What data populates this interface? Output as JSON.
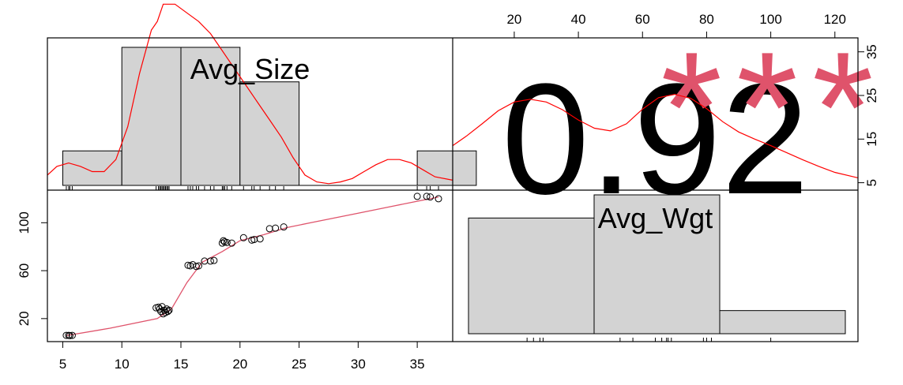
{
  "chart_data": {
    "type": "scatter",
    "variables": [
      "Avg_Size",
      "Avg_Wgt"
    ],
    "correlation": {
      "value": "0.92",
      "stars": "***"
    },
    "axes": {
      "bottom_ticks": [
        5,
        10,
        15,
        20,
        25,
        30,
        35
      ],
      "top_ticks": [
        20,
        40,
        60,
        80,
        100,
        120
      ],
      "left_ticks": [
        20,
        60,
        100
      ],
      "right_ticks": [
        5,
        15,
        25,
        35
      ],
      "size_range": [
        3.7,
        38.0
      ],
      "wgt_range": [
        0.8,
        127.2
      ],
      "wgt_count_range": [
        3.3,
        38.2
      ]
    },
    "avg_size_hist": {
      "bins": [
        [
          5,
          10,
          2
        ],
        [
          10,
          15,
          8
        ],
        [
          15,
          20,
          8
        ],
        [
          20,
          25,
          6
        ],
        [
          25,
          30,
          0
        ],
        [
          30,
          35,
          0
        ],
        [
          35,
          40,
          2
        ]
      ],
      "count_max": 8
    },
    "avg_wgt_hist": {
      "bins": [
        [
          0,
          50,
          15
        ],
        [
          50,
          100,
          18
        ],
        [
          100,
          150,
          3
        ]
      ],
      "count_max": 18
    },
    "points": [
      [
        5.3,
        6
      ],
      [
        5.5,
        6
      ],
      [
        5.6,
        5.8
      ],
      [
        5.8,
        6
      ],
      [
        12.9,
        29
      ],
      [
        13.1,
        29.5
      ],
      [
        13.2,
        28
      ],
      [
        13.3,
        26
      ],
      [
        13.4,
        30
      ],
      [
        13.5,
        24
      ],
      [
        13.6,
        27
      ],
      [
        13.7,
        25
      ],
      [
        13.8,
        28
      ],
      [
        13.9,
        26
      ],
      [
        14.0,
        27
      ],
      [
        15.6,
        64.5
      ],
      [
        15.8,
        64
      ],
      [
        16.0,
        65
      ],
      [
        16.3,
        63.5
      ],
      [
        16.5,
        64
      ],
      [
        17.0,
        68
      ],
      [
        17.5,
        68
      ],
      [
        17.8,
        68.5
      ],
      [
        18.5,
        83
      ],
      [
        18.6,
        85
      ],
      [
        18.7,
        84
      ],
      [
        18.9,
        83.5
      ],
      [
        19.3,
        83
      ],
      [
        20.3,
        87.5
      ],
      [
        21.0,
        85.5
      ],
      [
        21.2,
        86
      ],
      [
        21.7,
        86.5
      ],
      [
        22.5,
        95
      ],
      [
        23.0,
        95.5
      ],
      [
        23.7,
        96.5
      ],
      [
        35.0,
        122
      ],
      [
        35.8,
        122
      ],
      [
        36.1,
        121.5
      ],
      [
        36.8,
        120
      ]
    ],
    "smooth_line": [
      [
        5.3,
        5.8
      ],
      [
        9,
        12
      ],
      [
        13,
        20
      ],
      [
        14.2,
        28
      ],
      [
        15.5,
        50
      ],
      [
        16.8,
        67
      ],
      [
        18.5,
        76
      ],
      [
        20,
        85
      ],
      [
        22,
        90
      ],
      [
        24,
        96
      ],
      [
        26,
        100
      ],
      [
        30,
        108
      ],
      [
        33,
        114
      ],
      [
        36.8,
        121.5
      ]
    ],
    "size_rug": [
      5.3,
      5.5,
      5.6,
      5.8,
      12.9,
      13.1,
      13.2,
      13.3,
      13.4,
      13.5,
      13.6,
      13.7,
      13.8,
      13.9,
      14.0,
      15.6,
      15.8,
      16.0,
      16.3,
      16.5,
      17.0,
      17.5,
      17.8,
      18.5,
      18.6,
      18.7,
      18.9,
      19.3,
      20.3,
      21.0,
      21.2,
      21.7,
      22.5,
      23.0,
      23.7,
      35.0,
      35.8,
      36.1,
      36.8
    ],
    "wgt_rug": [
      24,
      26,
      28,
      29,
      53,
      57,
      64,
      66,
      67.5,
      68,
      69,
      79,
      80,
      81.5,
      100
    ],
    "size_density": [
      [
        3.7,
        0.6
      ],
      [
        4.5,
        1.1
      ],
      [
        5.5,
        1.3
      ],
      [
        6.5,
        1.1
      ],
      [
        7.5,
        0.8
      ],
      [
        8.5,
        0.8
      ],
      [
        9.5,
        1.5
      ],
      [
        10.5,
        3.4
      ],
      [
        11.5,
        6.5
      ],
      [
        12.5,
        9
      ],
      [
        13,
        9.5
      ],
      [
        13.5,
        10.5
      ],
      [
        14.5,
        10.5
      ],
      [
        15.5,
        10
      ],
      [
        16.5,
        9.5
      ],
      [
        17.5,
        8.8
      ],
      [
        18.5,
        7.8
      ],
      [
        19.5,
        6.8
      ],
      [
        20.5,
        5.8
      ],
      [
        21.5,
        4.8
      ],
      [
        22.5,
        3.8
      ],
      [
        23.5,
        2.8
      ],
      [
        24.5,
        1.6
      ],
      [
        25.5,
        0.6
      ],
      [
        26.5,
        0.2
      ],
      [
        27.5,
        0.1
      ],
      [
        28.5,
        0.2
      ],
      [
        29.5,
        0.4
      ],
      [
        30.5,
        0.8
      ],
      [
        31.5,
        1.2
      ],
      [
        32.5,
        1.5
      ],
      [
        33.5,
        1.5
      ],
      [
        34.5,
        1.3
      ],
      [
        35.5,
        0.9
      ],
      [
        36.5,
        0.5
      ],
      [
        38,
        0.3
      ]
    ],
    "wgt_density": [
      [
        0.8,
        6.8
      ],
      [
        5,
        8.5
      ],
      [
        10,
        10.8
      ],
      [
        15,
        13.2
      ],
      [
        20,
        14.8
      ],
      [
        25,
        15.3
      ],
      [
        30,
        14.8
      ],
      [
        35,
        13.4
      ],
      [
        40,
        11.5
      ],
      [
        45,
        10
      ],
      [
        50,
        9.5
      ],
      [
        55,
        10.8
      ],
      [
        60,
        13.5
      ],
      [
        65,
        15.6
      ],
      [
        70,
        16.2
      ],
      [
        75,
        15.5
      ],
      [
        80,
        13.6
      ],
      [
        85,
        11.2
      ],
      [
        90,
        9.3
      ],
      [
        95,
        8
      ],
      [
        100,
        6.8
      ],
      [
        105,
        5.5
      ],
      [
        110,
        4.2
      ],
      [
        115,
        3.0
      ],
      [
        120,
        1.9
      ],
      [
        125,
        1.2
      ],
      [
        127.2,
        0.9
      ]
    ],
    "colors": {
      "stars": "#df536b",
      "smooth": "#df536b",
      "density": "#ff0000",
      "bar_fill": "#d3d3d3"
    }
  }
}
